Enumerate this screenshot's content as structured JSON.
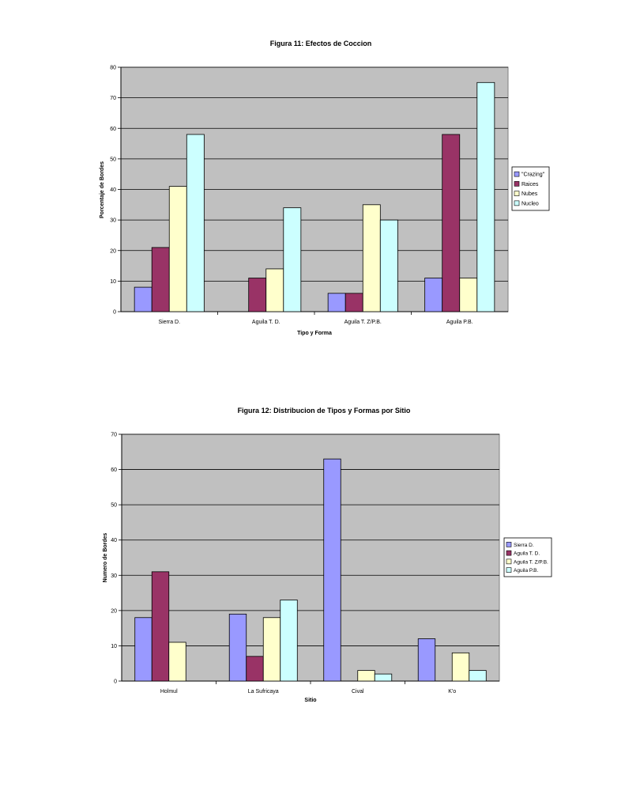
{
  "colors": {
    "plot_bg": "#c0c0c0",
    "grid": "#000000",
    "series": [
      "#9999ff",
      "#993366",
      "#ffffcc",
      "#ccffff"
    ]
  },
  "chart_data": [
    {
      "type": "bar",
      "title": "Figura 11: Efectos de Coccion",
      "xlabel": "Tipo y Forma",
      "ylabel": "Porcentaje de Bordes",
      "ylim": [
        0,
        80
      ],
      "yticks": [
        "0",
        "10",
        "20",
        "30",
        "40",
        "50",
        "60",
        "70",
        "80"
      ],
      "grid": true,
      "legend_position": "right",
      "categories": [
        "Sierra D.",
        "Aguila T. D.",
        "Aguila T. Z/P.B.",
        "Aguila P.B."
      ],
      "series": [
        {
          "name": "\"Crazing\"",
          "values": [
            8,
            0,
            6,
            11
          ]
        },
        {
          "name": "Raices",
          "values": [
            21,
            11,
            6,
            58
          ]
        },
        {
          "name": "Nubes",
          "values": [
            41,
            14,
            35,
            11
          ]
        },
        {
          "name": "Nucleo",
          "values": [
            58,
            34,
            30,
            75
          ]
        }
      ]
    },
    {
      "type": "bar",
      "title": "Figura 12: Distribucion de Tipos y Formas por Sitio",
      "xlabel": "Sitio",
      "ylabel": "Numero de Bordes",
      "ylim": [
        0,
        70
      ],
      "yticks": [
        "0",
        "10",
        "20",
        "30",
        "40",
        "50",
        "60",
        "70"
      ],
      "grid": true,
      "legend_position": "right",
      "categories": [
        "Holmul",
        "La Sufricaya",
        "Cival",
        "K'o"
      ],
      "series": [
        {
          "name": "Sierra D.",
          "values": [
            18,
            19,
            63,
            12
          ]
        },
        {
          "name": "Aguila T. D.",
          "values": [
            31,
            7,
            0,
            0
          ]
        },
        {
          "name": "Aguila T. Z/P.B.",
          "values": [
            11,
            18,
            3,
            8
          ]
        },
        {
          "name": "Aguila P.B.",
          "values": [
            0,
            23,
            2,
            3
          ]
        }
      ]
    }
  ]
}
